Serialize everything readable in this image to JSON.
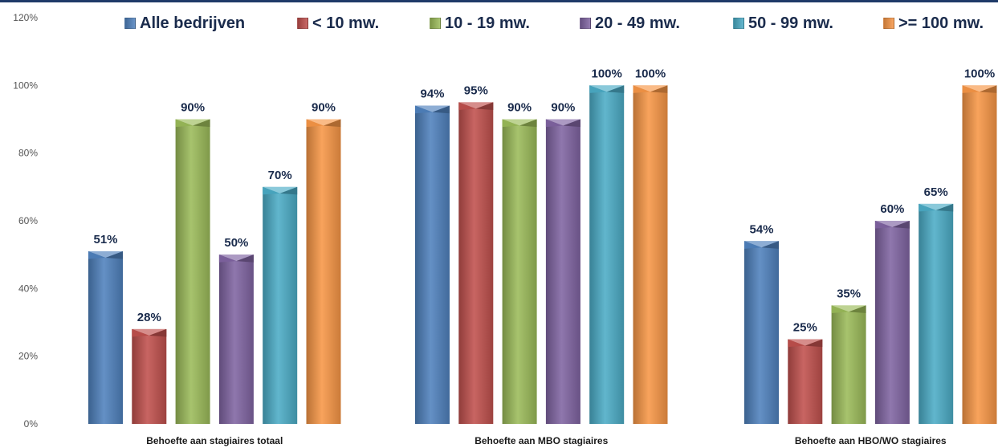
{
  "chart_data": {
    "type": "bar",
    "categories": [
      "Behoefte aan stagiaires totaal",
      "Behoefte aan MBO stagiaires",
      "Behoefte aan HBO/WO stagiaires"
    ],
    "series": [
      {
        "name": "Alle bedrijven",
        "color": "#4f81bd",
        "values": [
          51,
          94,
          54
        ],
        "labels": [
          "51%",
          "94%",
          "54%"
        ]
      },
      {
        "name": "< 10 mw.",
        "color": "#c0504d",
        "values": [
          28,
          95,
          25
        ],
        "labels": [
          "28%",
          "95%",
          "25%"
        ]
      },
      {
        "name": "10 - 19 mw.",
        "color": "#9bbb59",
        "values": [
          90,
          90,
          35
        ],
        "labels": [
          "90%",
          "90%",
          "35%"
        ]
      },
      {
        "name": "20 - 49 mw.",
        "color": "#8064a2",
        "values": [
          50,
          90,
          60
        ],
        "labels": [
          "50%",
          "90%",
          "60%"
        ]
      },
      {
        "name": "50 - 99 mw.",
        "color": "#4bacc6",
        "values": [
          70,
          100,
          65
        ],
        "labels": [
          "70%",
          "100%",
          "65%"
        ]
      },
      {
        "name": ">= 100 mw.",
        "color": "#f79646",
        "values": [
          90,
          100,
          100
        ],
        "labels": [
          "90%",
          "100%",
          "100%"
        ]
      }
    ],
    "yticks": [
      "0%",
      "20%",
      "40%",
      "60%",
      "80%",
      "100%",
      "120%"
    ],
    "ylim": [
      0,
      120
    ],
    "ylabel": "",
    "xlabel": "",
    "title": "",
    "grid": false,
    "legend_position": "top"
  }
}
